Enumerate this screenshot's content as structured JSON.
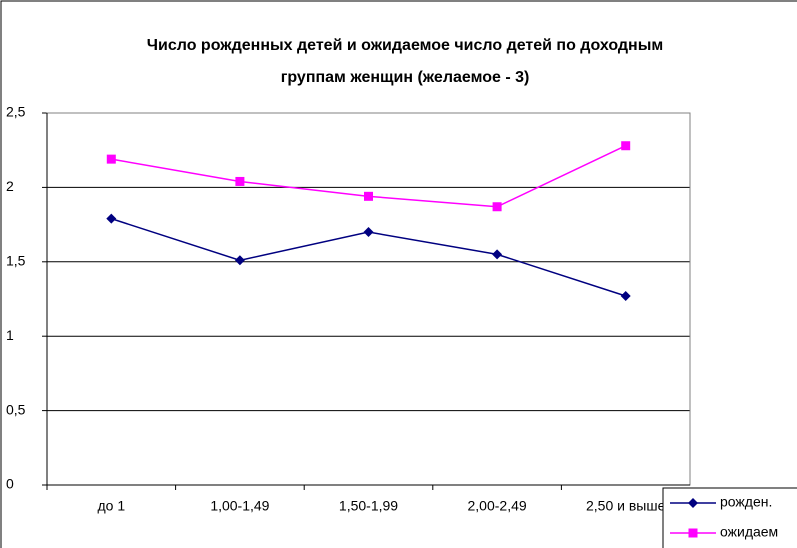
{
  "chart_data": {
    "type": "line",
    "title_lines": [
      "Число рожденных детей и ожидаемое число детей по доходным",
      "группам женщин (желаемое - 3)"
    ],
    "categories": [
      "до 1",
      "1,00-1,49",
      "1,50-1,99",
      "2,00-2,49",
      "2,50 и выше"
    ],
    "series": [
      {
        "name": "рожден.",
        "color": "#000080",
        "marker": "diamond",
        "values": [
          1.79,
          1.51,
          1.7,
          1.55,
          1.27
        ]
      },
      {
        "name": "ожидаем",
        "color": "#ff00ff",
        "marker": "square",
        "values": [
          2.19,
          2.04,
          1.94,
          1.87,
          2.28
        ]
      }
    ],
    "ylim": [
      0,
      2.5
    ],
    "yticks": [
      0,
      {
        "value": 0.5,
        "label": "0,5"
      },
      1,
      {
        "value": 1.5,
        "label": "1,5"
      },
      2,
      {
        "value": 2.5,
        "label": "2,5"
      }
    ],
    "grid": true
  }
}
